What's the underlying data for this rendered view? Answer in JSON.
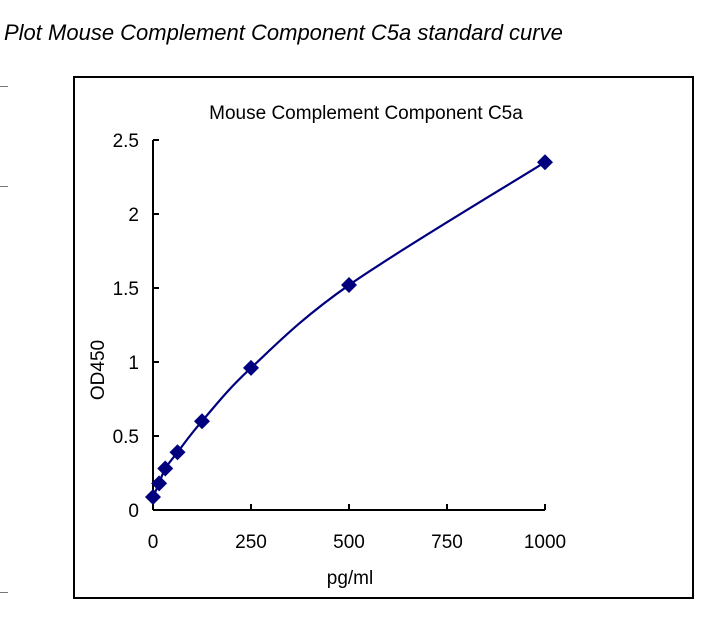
{
  "page_title": "Plot Mouse Complement Component C5a standard curve",
  "chart_data": {
    "type": "scatter",
    "title": "Mouse Complement Component C5a",
    "xlabel": "pg/ml",
    "ylabel": "OD450",
    "xlim": [
      0,
      1000
    ],
    "ylim": [
      0,
      2.5
    ],
    "xticks": [
      "0",
      "250",
      "500",
      "750",
      "1000"
    ],
    "yticks": [
      "0",
      "0.5",
      "1",
      "1.5",
      "2",
      "2.5"
    ],
    "grid": false,
    "legend": "none",
    "trendline": "smooth curve",
    "marker": "diamond",
    "color": "#00007f",
    "series": [
      {
        "x": [
          0,
          15.6,
          31.25,
          62.5,
          125,
          250,
          500,
          1000
        ],
        "y": [
          0.088,
          0.18,
          0.28,
          0.39,
          0.6,
          0.96,
          1.52,
          2.35
        ]
      }
    ]
  }
}
